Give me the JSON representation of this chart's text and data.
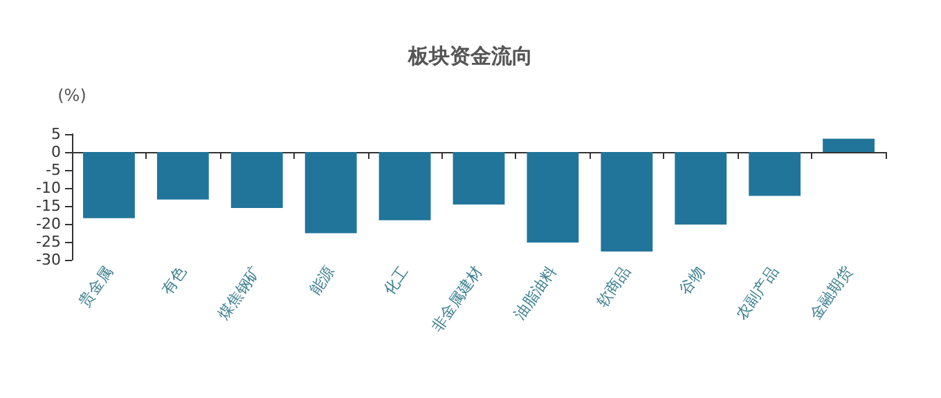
{
  "chart_data": {
    "type": "bar",
    "title": "板块资金流向",
    "ylabel": "(%)",
    "categories": [
      "贵金属",
      "有色",
      "煤焦钢矿",
      "能源",
      "化工",
      "非金属建材",
      "油脂油料",
      "软商品",
      "谷物",
      "农副产品",
      "金融期货"
    ],
    "values": [
      -18.4,
      -13.2,
      -15.6,
      -22.6,
      -19.0,
      -14.6,
      -25.2,
      -27.7,
      -20.2,
      -12.2,
      3.7
    ],
    "color": "#21759b",
    "ylim": [
      -30,
      5
    ],
    "yticks": [
      -30,
      -25,
      -20,
      -15,
      -10,
      -5,
      0,
      5
    ]
  }
}
